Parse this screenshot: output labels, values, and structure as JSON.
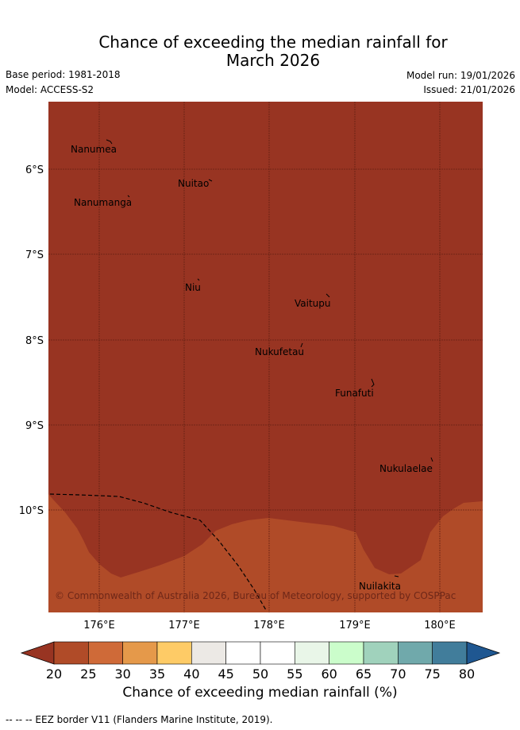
{
  "title": {
    "line1": "Chance of exceeding the median rainfall for",
    "line2": "March 2026"
  },
  "meta": {
    "base_period": "Base period: 1981-2018",
    "model": "Model: ACCESS-S2",
    "model_run": "Model run: 19/01/2026",
    "issued": "Issued: 21/01/2026"
  },
  "map": {
    "lat_labels": [
      "6°S",
      "7°S",
      "8°S",
      "9°S",
      "10°S"
    ],
    "lon_labels": [
      "176°E",
      "177°E",
      "178°E",
      "179°E",
      "180°E"
    ],
    "islands": [
      "Nanumea",
      "Nuitao",
      "Nanumanga",
      "Niu",
      "Vaitupu",
      "Nukufetau",
      "Funafuti",
      "Nukulaelae",
      "Nuilakita"
    ],
    "copyright": "© Commonwealth of Australia 2026, Bureau of Meteorology, supported by COSPPac",
    "colors": {
      "dark_below": "#983422",
      "below": "#b04b28",
      "grid": "#5a1c10"
    }
  },
  "colorbar": {
    "ticks": [
      "20",
      "25",
      "30",
      "35",
      "40",
      "45",
      "50",
      "55",
      "60",
      "65",
      "70",
      "75",
      "80"
    ],
    "colors": [
      "#983422",
      "#b04b28",
      "#cf6a38",
      "#e5994a",
      "#fecb66",
      "#ece9e5",
      "#ffffff",
      "#ffffff",
      "#e9f6e8",
      "#cbfdcb",
      "#a0d2bc",
      "#70a9ab",
      "#417d9b",
      "#1f5791"
    ],
    "title": "Chance of exceeding median rainfall (%)"
  },
  "footer": "--  --  -- EEZ border V11 (Flanders Marine Institute, 2019)."
}
